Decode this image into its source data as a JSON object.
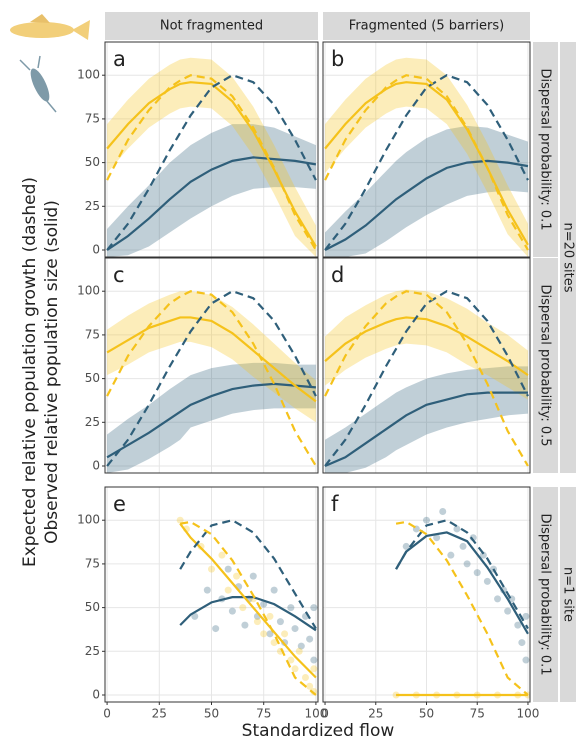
{
  "figure": {
    "ylabel": [
      "Expected relative population growth (dashed)",
      "Observed relative population size (solid)"
    ],
    "xlabel": "Standardized flow",
    "columns": [
      "Not fragmented",
      "Fragmented (5 barriers)"
    ],
    "rows": [
      "Dispersal probability: 0.1",
      "Dispersal probability: 0.5",
      "Dispersal probability: 0.1"
    ],
    "groups": [
      "n=20 sites",
      "n=1 site"
    ]
  },
  "chart_data": [
    {
      "type": "line",
      "title": "a",
      "xlim": [
        -1,
        101
      ],
      "ylim": [
        -4,
        119
      ],
      "xticks": [
        0,
        25,
        50,
        75,
        100
      ],
      "yticks": [
        0,
        25,
        50,
        75,
        100
      ],
      "grid": true,
      "x": [
        0,
        10,
        20,
        30,
        35,
        40,
        50,
        60,
        70,
        80,
        90,
        100
      ],
      "series": [
        {
          "color": "#2f5f7a",
          "dashed": false,
          "values": [
            0,
            8,
            18,
            29,
            34,
            39,
            46,
            51,
            53,
            52,
            51,
            49
          ],
          "upper": [
            12,
            25,
            37,
            50,
            55,
            60,
            67,
            72,
            72,
            70,
            65,
            60
          ],
          "lower": [
            -4,
            -3,
            2,
            10,
            14,
            18,
            25,
            31,
            35,
            36,
            36,
            35
          ]
        },
        {
          "color": "#f5c21b",
          "dashed": false,
          "values": [
            58,
            72,
            84,
            92,
            95,
            96,
            95,
            85,
            68,
            46,
            22,
            2
          ],
          "upper": [
            72,
            86,
            98,
            106,
            109,
            110,
            109,
            99,
            82,
            60,
            36,
            14
          ],
          "lower": [
            44,
            58,
            70,
            78,
            81,
            82,
            81,
            71,
            54,
            32,
            8,
            -4
          ]
        },
        {
          "color": "#2f5f7a",
          "dashed": true,
          "values": [
            0,
            15,
            35,
            57,
            67,
            77,
            93,
            100,
            96,
            83,
            63,
            40
          ]
        },
        {
          "color": "#f5c21b",
          "dashed": true,
          "values": [
            40,
            63,
            80,
            93,
            97,
            100,
            98,
            88,
            70,
            47,
            20,
            0
          ]
        }
      ]
    },
    {
      "type": "line",
      "title": "b",
      "xlim": [
        -1,
        101
      ],
      "ylim": [
        -4,
        119
      ],
      "xticks": [
        0,
        25,
        50,
        75,
        100
      ],
      "yticks": [
        0,
        25,
        50,
        75,
        100
      ],
      "grid": true,
      "x": [
        0,
        10,
        20,
        30,
        35,
        40,
        50,
        60,
        70,
        80,
        90,
        100
      ],
      "series": [
        {
          "color": "#2f5f7a",
          "dashed": false,
          "values": [
            0,
            6,
            14,
            24,
            29,
            33,
            41,
            47,
            50,
            51,
            50,
            48
          ],
          "upper": [
            10,
            22,
            33,
            45,
            51,
            56,
            64,
            69,
            71,
            70,
            66,
            62
          ],
          "lower": [
            -4,
            -4,
            -2,
            5,
            9,
            13,
            20,
            26,
            31,
            33,
            34,
            33
          ]
        },
        {
          "color": "#f5c21b",
          "dashed": false,
          "values": [
            58,
            72,
            84,
            92,
            95,
            96,
            95,
            86,
            69,
            47,
            23,
            3
          ],
          "upper": [
            72,
            86,
            98,
            106,
            109,
            110,
            109,
            100,
            83,
            61,
            37,
            15
          ],
          "lower": [
            44,
            58,
            70,
            78,
            81,
            82,
            81,
            72,
            55,
            33,
            9,
            -4
          ]
        },
        {
          "color": "#2f5f7a",
          "dashed": true,
          "values": [
            0,
            15,
            35,
            57,
            67,
            77,
            93,
            100,
            96,
            83,
            63,
            40
          ]
        },
        {
          "color": "#f5c21b",
          "dashed": true,
          "values": [
            40,
            63,
            80,
            93,
            97,
            100,
            98,
            88,
            70,
            47,
            20,
            0
          ]
        }
      ]
    },
    {
      "type": "line",
      "title": "c",
      "xlim": [
        -1,
        101
      ],
      "ylim": [
        -4,
        119
      ],
      "xticks": [
        0,
        25,
        50,
        75,
        100
      ],
      "yticks": [
        0,
        25,
        50,
        75,
        100
      ],
      "grid": true,
      "x": [
        0,
        10,
        20,
        30,
        35,
        40,
        50,
        60,
        70,
        80,
        90,
        100
      ],
      "series": [
        {
          "color": "#2f5f7a",
          "dashed": false,
          "values": [
            5,
            12,
            19,
            27,
            31,
            35,
            40,
            44,
            46,
            47,
            46,
            45
          ],
          "upper": [
            18,
            27,
            35,
            44,
            48,
            52,
            56,
            58,
            59,
            59,
            58,
            58
          ],
          "lower": [
            -4,
            -2,
            4,
            11,
            15,
            22,
            26,
            30,
            32,
            33,
            33,
            33
          ]
        },
        {
          "color": "#f5c21b",
          "dashed": false,
          "values": [
            65,
            72,
            79,
            83,
            85,
            85,
            83,
            76,
            66,
            56,
            46,
            37
          ],
          "upper": [
            78,
            86,
            93,
            98,
            100,
            100,
            98,
            91,
            81,
            70,
            59,
            49
          ],
          "lower": [
            52,
            58,
            65,
            69,
            71,
            71,
            68,
            61,
            51,
            42,
            33,
            25
          ]
        },
        {
          "color": "#2f5f7a",
          "dashed": true,
          "values": [
            0,
            15,
            35,
            57,
            67,
            77,
            93,
            100,
            96,
            83,
            63,
            40
          ]
        },
        {
          "color": "#f5c21b",
          "dashed": true,
          "values": [
            40,
            63,
            80,
            93,
            97,
            100,
            98,
            88,
            70,
            47,
            20,
            0
          ]
        }
      ]
    },
    {
      "type": "line",
      "title": "d",
      "xlim": [
        -1,
        101
      ],
      "ylim": [
        -4,
        119
      ],
      "xticks": [
        0,
        25,
        50,
        75,
        100
      ],
      "yticks": [
        0,
        25,
        50,
        75,
        100
      ],
      "grid": true,
      "x": [
        0,
        10,
        20,
        30,
        35,
        40,
        50,
        60,
        70,
        80,
        90,
        100
      ],
      "series": [
        {
          "color": "#2f5f7a",
          "dashed": false,
          "values": [
            0,
            5,
            13,
            21,
            25,
            29,
            35,
            38,
            41,
            42,
            42,
            42
          ],
          "upper": [
            15,
            22,
            30,
            38,
            42,
            45,
            50,
            53,
            55,
            56,
            57,
            57
          ],
          "lower": [
            -4,
            -4,
            -1,
            5,
            9,
            12,
            18,
            22,
            25,
            27,
            29,
            30
          ]
        },
        {
          "color": "#f5c21b",
          "dashed": false,
          "values": [
            60,
            70,
            77,
            82,
            84,
            85,
            84,
            80,
            74,
            67,
            60,
            52
          ],
          "upper": [
            74,
            85,
            92,
            98,
            100,
            101,
            100,
            96,
            90,
            82,
            75,
            66
          ],
          "lower": [
            46,
            55,
            62,
            67,
            69,
            70,
            69,
            65,
            58,
            52,
            45,
            38
          ]
        },
        {
          "color": "#2f5f7a",
          "dashed": true,
          "values": [
            0,
            15,
            35,
            57,
            67,
            77,
            93,
            100,
            96,
            83,
            63,
            40
          ]
        },
        {
          "color": "#f5c21b",
          "dashed": true,
          "values": [
            40,
            63,
            80,
            93,
            97,
            100,
            98,
            88,
            70,
            47,
            20,
            0
          ]
        }
      ]
    },
    {
      "type": "line",
      "title": "e",
      "xlim": [
        -1,
        101
      ],
      "ylim": [
        -4,
        119
      ],
      "xticks": [
        0,
        25,
        50,
        75,
        100
      ],
      "yticks": [
        0,
        25,
        50,
        75,
        100
      ],
      "grid": true,
      "x": [
        0,
        10,
        20,
        30,
        35,
        40,
        50,
        60,
        70,
        80,
        90,
        100
      ],
      "points": [
        {
          "color": "#2f5f7a",
          "x": [
            42,
            48,
            52,
            55,
            58,
            60,
            63,
            66,
            68,
            70,
            72,
            75,
            78,
            80,
            83,
            85,
            88,
            90,
            93,
            95,
            97,
            99,
            99
          ],
          "y": [
            45,
            60,
            38,
            55,
            72,
            48,
            62,
            40,
            55,
            68,
            45,
            52,
            35,
            60,
            42,
            30,
            50,
            38,
            28,
            45,
            32,
            20,
            50
          ]
        },
        {
          "color": "#f5c21b",
          "x": [
            35,
            38,
            45,
            50,
            55,
            58,
            62,
            65,
            70,
            72,
            75,
            78,
            80,
            83,
            85,
            88,
            90,
            92,
            95,
            97,
            99,
            99
          ],
          "y": [
            100,
            95,
            85,
            72,
            80,
            60,
            68,
            50,
            55,
            42,
            35,
            45,
            30,
            25,
            35,
            20,
            15,
            25,
            10,
            5,
            15,
            2
          ]
        }
      ],
      "series": [
        {
          "color": "#2f5f7a",
          "dashed": false,
          "values": [
            null,
            null,
            null,
            null,
            40,
            46,
            53,
            56,
            56,
            52,
            45,
            37
          ]
        },
        {
          "color": "#f5c21b",
          "dashed": false,
          "values": [
            null,
            null,
            null,
            null,
            98,
            90,
            78,
            64,
            50,
            36,
            22,
            10
          ]
        },
        {
          "color": "#2f5f7a",
          "dashed": true,
          "values": [
            null,
            null,
            null,
            null,
            72,
            82,
            97,
            100,
            93,
            78,
            58,
            38
          ]
        },
        {
          "color": "#f5c21b",
          "dashed": true,
          "values": [
            null,
            null,
            null,
            null,
            98,
            99,
            92,
            77,
            57,
            35,
            10,
            0
          ]
        }
      ]
    },
    {
      "type": "line",
      "title": "f",
      "xlim": [
        -1,
        101
      ],
      "ylim": [
        -4,
        119
      ],
      "xticks": [
        0,
        25,
        50,
        75,
        100
      ],
      "yticks": [
        0,
        25,
        50,
        75,
        100
      ],
      "grid": true,
      "x": [
        0,
        10,
        20,
        30,
        35,
        40,
        50,
        60,
        70,
        80,
        90,
        100
      ],
      "points": [
        {
          "color": "#2f5f7a",
          "x": [
            40,
            45,
            50,
            55,
            58,
            62,
            65,
            68,
            70,
            73,
            75,
            78,
            80,
            83,
            85,
            88,
            90,
            92,
            95,
            97,
            99,
            99
          ],
          "y": [
            85,
            95,
            100,
            90,
            105,
            80,
            95,
            85,
            75,
            90,
            70,
            80,
            65,
            72,
            55,
            60,
            48,
            55,
            40,
            30,
            45,
            20
          ]
        },
        {
          "color": "#f5c21b",
          "x": [
            35,
            45,
            55,
            65,
            75,
            85,
            95,
            100
          ],
          "y": [
            0,
            0,
            0,
            0,
            0,
            0,
            0,
            0
          ]
        }
      ],
      "series": [
        {
          "color": "#2f5f7a",
          "dashed": false,
          "values": [
            null,
            null,
            null,
            null,
            72,
            82,
            91,
            93,
            88,
            73,
            55,
            35
          ]
        },
        {
          "color": "#f5c21b",
          "dashed": false,
          "values": [
            null,
            null,
            null,
            null,
            0,
            0,
            0,
            0,
            0,
            0,
            0,
            0
          ]
        },
        {
          "color": "#2f5f7a",
          "dashed": true,
          "values": [
            null,
            null,
            null,
            null,
            72,
            82,
            97,
            100,
            93,
            78,
            58,
            38
          ]
        },
        {
          "color": "#f5c21b",
          "dashed": true,
          "values": [
            null,
            null,
            null,
            null,
            98,
            99,
            92,
            77,
            57,
            35,
            10,
            0
          ]
        }
      ]
    }
  ]
}
